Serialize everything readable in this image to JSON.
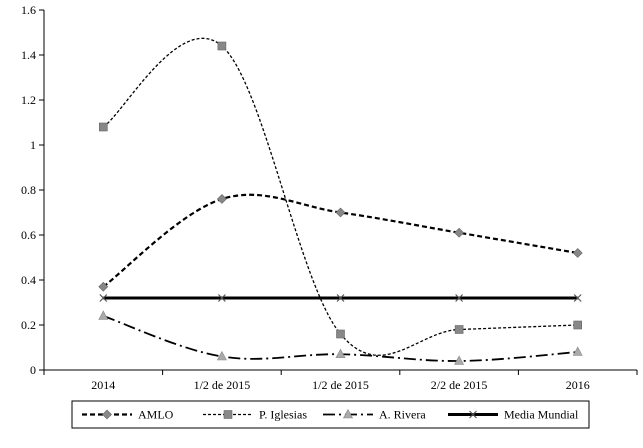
{
  "chart_data": {
    "type": "line",
    "categories": [
      "2014",
      "1/2 de 2015",
      "1/2 de 2015",
      "2/2 de 2015",
      "2016"
    ],
    "ylim": [
      0,
      1.6
    ],
    "yticks": [
      0,
      0.2,
      0.4,
      0.6,
      0.8,
      1,
      1.2,
      1.4,
      1.6
    ],
    "ytick_labels": [
      "0",
      "0.2",
      "0.4",
      "0.6",
      "0.8",
      "1",
      "1.2",
      "1.4",
      "1.6"
    ],
    "grid": false,
    "legend_position": "bottom",
    "series": [
      {
        "name": "AMLO",
        "values": [
          0.37,
          0.76,
          0.7,
          0.61,
          0.52
        ],
        "color": "#000000",
        "dash": "short-dash",
        "marker": "diamond",
        "smooth": true
      },
      {
        "name": "P. Iglesias",
        "values": [
          1.08,
          1.44,
          0.16,
          0.18,
          0.2
        ],
        "color": "#000000",
        "dash": "dot-dash",
        "marker": "square",
        "smooth": true
      },
      {
        "name": "A. Rivera",
        "values": [
          0.24,
          0.06,
          0.07,
          0.04,
          0.08
        ],
        "color": "#000000",
        "dash": "long-dash-dot",
        "marker": "triangle",
        "smooth": true
      },
      {
        "name": "Media Mundial",
        "values": [
          0.32,
          0.32,
          0.32,
          0.32,
          0.32
        ],
        "color": "#000000",
        "dash": "solid-thick",
        "marker": "x",
        "smooth": false
      }
    ]
  }
}
